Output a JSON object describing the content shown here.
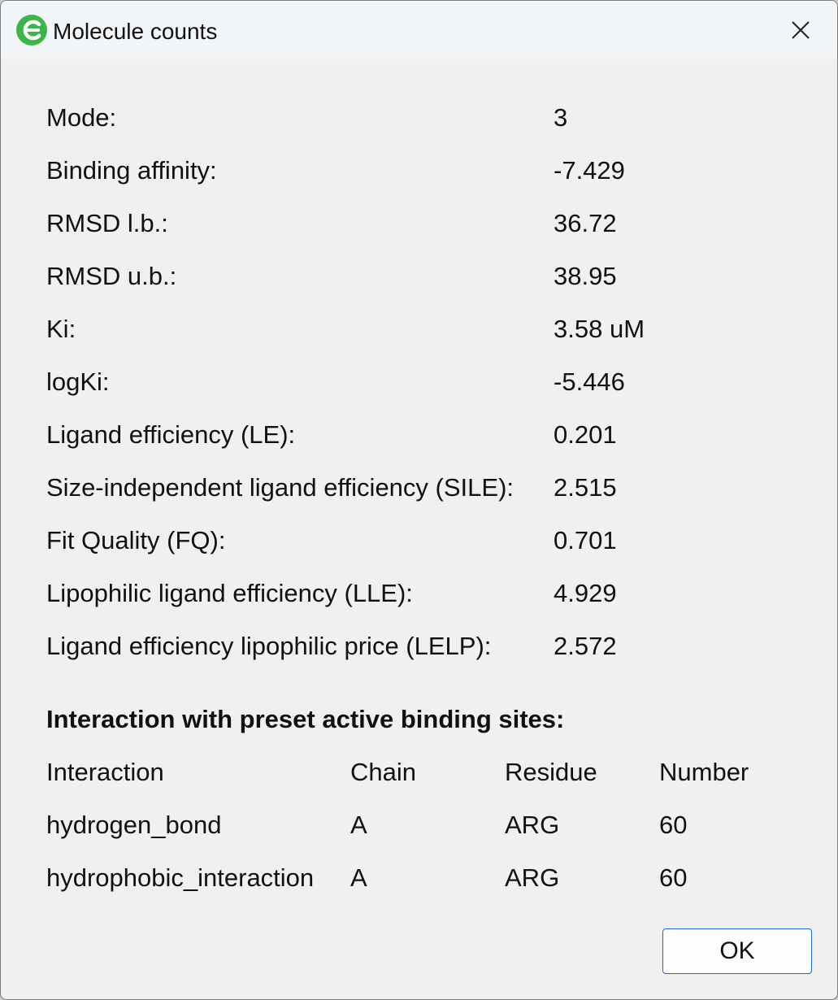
{
  "window": {
    "title": "Molecule counts"
  },
  "icons": {
    "app_icon": "app-logo-icon",
    "close_icon": "close-icon"
  },
  "colors": {
    "app_icon_green": "#3cb54a",
    "ok_border": "#1f66c9"
  },
  "results": [
    {
      "label": "Mode:",
      "value": "3"
    },
    {
      "label": "Binding affinity:",
      "value": "-7.429"
    },
    {
      "label": "RMSD l.b.:",
      "value": "36.72"
    },
    {
      "label": "RMSD u.b.:",
      "value": "38.95"
    },
    {
      "label": "Ki:",
      "value": "3.58 uM"
    },
    {
      "label": "logKi:",
      "value": "-5.446"
    },
    {
      "label": "Ligand efficiency (LE):",
      "value": "0.201"
    },
    {
      "label": "Size-independent ligand efficiency (SILE):",
      "value": "2.515"
    },
    {
      "label": "Fit Quality (FQ):",
      "value": "0.701"
    },
    {
      "label": "Lipophilic ligand efficiency (LLE):",
      "value": "4.929"
    },
    {
      "label": "Ligand efficiency lipophilic price (LELP):",
      "value": "2.572"
    }
  ],
  "interactions": {
    "title": "Interaction with preset active binding sites:",
    "headers": [
      "Interaction",
      "Chain",
      "Residue",
      "Number"
    ],
    "rows": [
      [
        "hydrogen_bond",
        "A",
        "ARG",
        "60"
      ],
      [
        "hydrophobic_interaction",
        "A",
        "ARG",
        "60"
      ]
    ]
  },
  "buttons": {
    "ok_label": "OK"
  }
}
